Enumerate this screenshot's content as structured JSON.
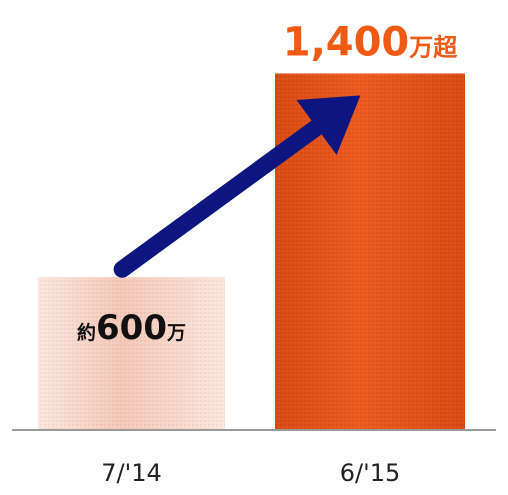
{
  "chart_data": {
    "type": "bar",
    "categories": [
      "7/'14",
      "6/'15"
    ],
    "values": [
      600,
      1400
    ],
    "unit": "万",
    "data_labels": [
      {
        "prefix": "約",
        "number": "600",
        "suffix": "万"
      },
      {
        "prefix": "",
        "number": "1,400",
        "suffix": "万超"
      }
    ],
    "ylim": [
      0,
      1500
    ],
    "grid": false,
    "legend": "none",
    "annotation": "arrow from first bar to second bar (growth)",
    "colors": {
      "bar_1_base": "#f5c8b8",
      "bar_1_light": "#fbe6dd",
      "bar_2_base": "#ec5a1e",
      "bar_2_dark": "#d94a12",
      "label_1": "#111111",
      "label_2": "#f05a14",
      "arrow": "#0d1680",
      "baseline": "#9a9a9a",
      "tick_label": "#222222"
    }
  }
}
